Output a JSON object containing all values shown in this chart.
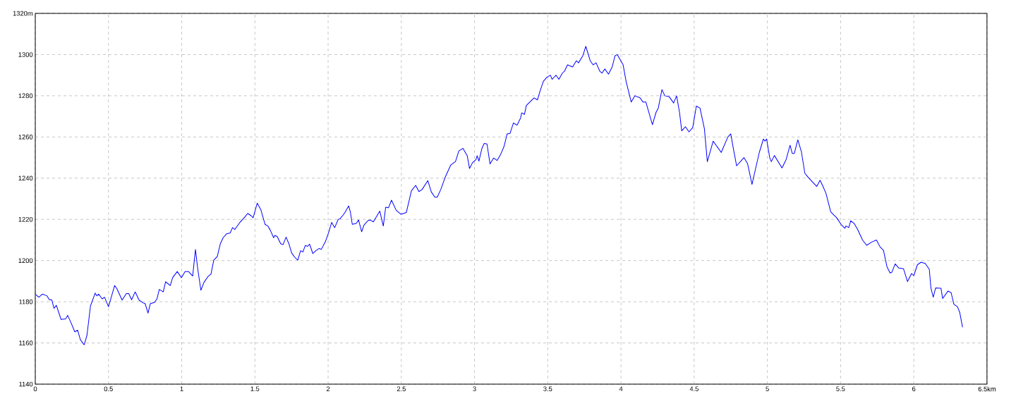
{
  "chart_data": {
    "type": "line",
    "x": [
      0,
      0.024,
      0.048,
      0.08,
      0.096,
      0.112,
      0.128,
      0.144,
      0.176,
      0.208,
      0.221,
      0.24,
      0.27,
      0.289,
      0.308,
      0.334,
      0.353,
      0.377,
      0.409,
      0.42,
      0.433,
      0.457,
      0.473,
      0.5,
      0.513,
      0.542,
      0.558,
      0.593,
      0.622,
      0.638,
      0.658,
      0.682,
      0.709,
      0.738,
      0.75,
      0.77,
      0.786,
      0.815,
      0.831,
      0.847,
      0.874,
      0.89,
      0.922,
      0.938,
      0.97,
      0.998,
      1.023,
      1.046,
      1.075,
      1.094,
      1.11,
      1.131,
      1.152,
      1.179,
      1.2,
      1.219,
      1.243,
      1.264,
      1.283,
      1.307,
      1.331,
      1.347,
      1.363,
      1.395,
      1.427,
      1.451,
      1.475,
      1.488,
      1.516,
      1.54,
      1.569,
      1.588,
      1.604,
      1.628,
      1.636,
      1.652,
      1.676,
      1.692,
      1.713,
      1.732,
      1.751,
      1.772,
      1.793,
      1.812,
      1.828,
      1.844,
      1.86,
      1.873,
      1.896,
      1.916,
      1.94,
      1.953,
      1.981,
      2.005,
      2.024,
      2.045,
      2.069,
      2.08,
      2.104,
      2.117,
      2.14,
      2.152,
      2.165,
      2.192,
      2.208,
      2.229,
      2.245,
      2.272,
      2.288,
      2.309,
      2.353,
      2.377,
      2.393,
      2.412,
      2.433,
      2.465,
      2.497,
      2.534,
      2.569,
      2.598,
      2.62,
      2.641,
      2.681,
      2.705,
      2.729,
      2.745,
      2.769,
      2.801,
      2.838,
      2.87,
      2.893,
      2.921,
      2.95,
      2.966,
      2.986,
      3.01,
      3.018,
      3.03,
      3.05,
      3.066,
      3.085,
      3.106,
      3.13,
      3.154,
      3.178,
      3.202,
      3.223,
      3.242,
      3.266,
      3.29,
      3.314,
      3.322,
      3.341,
      3.354,
      3.407,
      3.43,
      3.446,
      3.47,
      3.494,
      3.518,
      3.53,
      3.557,
      3.576,
      3.6,
      3.615,
      3.635,
      3.67,
      3.695,
      3.71,
      3.74,
      3.76,
      3.79,
      3.81,
      3.83,
      3.855,
      3.87,
      3.89,
      3.915,
      3.94,
      3.96,
      3.975,
      4.015,
      4.035,
      4.07,
      4.095,
      4.13,
      4.15,
      4.17,
      4.215,
      4.24,
      4.255,
      4.28,
      4.3,
      4.33,
      4.36,
      4.38,
      4.4,
      4.415,
      4.44,
      4.465,
      4.49,
      4.515,
      4.54,
      4.57,
      4.59,
      4.63,
      4.685,
      4.73,
      4.75,
      4.77,
      4.79,
      4.84,
      4.865,
      4.895,
      4.945,
      4.973,
      4.984,
      4.995,
      5.016,
      5.027,
      5.048,
      5.1,
      5.128,
      5.155,
      5.17,
      5.184,
      5.208,
      5.232,
      5.256,
      5.28,
      5.316,
      5.337,
      5.36,
      5.38,
      5.4,
      5.433,
      5.473,
      5.505,
      5.53,
      5.537,
      5.556,
      5.569,
      5.593,
      5.617,
      5.65,
      5.678,
      5.713,
      5.745,
      5.77,
      5.793,
      5.817,
      5.838,
      5.85,
      5.873,
      5.897,
      5.93,
      5.957,
      5.985,
      6.0,
      6.025,
      6.05,
      6.078,
      6.106,
      6.117,
      6.133,
      6.149,
      6.186,
      6.197,
      6.234,
      6.255,
      6.274,
      6.298,
      6.314,
      6.333
    ],
    "values": [
      1183.7,
      1182.2,
      1183.7,
      1182.9,
      1181,
      1181,
      1176.8,
      1178.3,
      1171.4,
      1171.7,
      1173.4,
      1170.5,
      1165.4,
      1166.2,
      1161.6,
      1159.1,
      1163.7,
      1178,
      1184.2,
      1182.9,
      1183.7,
      1181.4,
      1182.2,
      1177.6,
      1180.8,
      1187.9,
      1186.3,
      1180.8,
      1184,
      1184,
      1181,
      1184.8,
      1180.8,
      1179.4,
      1179.1,
      1174.5,
      1179.1,
      1179.7,
      1181.4,
      1186,
      1184.8,
      1189.7,
      1187.9,
      1191.7,
      1194.7,
      1191.7,
      1194.7,
      1194.7,
      1192.5,
      1205.4,
      1195.7,
      1185.6,
      1189.4,
      1192.2,
      1193.4,
      1200.2,
      1202,
      1208.2,
      1211.1,
      1213,
      1213.4,
      1216,
      1215.1,
      1218.3,
      1220.8,
      1222.9,
      1221.7,
      1220.8,
      1227.9,
      1224.8,
      1217.6,
      1216.8,
      1214.9,
      1211.1,
      1212.2,
      1211.7,
      1208.2,
      1207.7,
      1211.4,
      1208.2,
      1203.7,
      1201.6,
      1200.2,
      1204.8,
      1204.2,
      1207.3,
      1206.9,
      1208,
      1203.4,
      1204.8,
      1205.9,
      1205.4,
      1209.1,
      1213.9,
      1218.5,
      1216,
      1220,
      1220.2,
      1222.2,
      1223.6,
      1226.5,
      1223.6,
      1217.6,
      1218,
      1219.7,
      1214,
      1217.2,
      1219.4,
      1219.7,
      1218.8,
      1224,
      1216.8,
      1225.9,
      1225.6,
      1229.3,
      1224.4,
      1222.5,
      1223.3,
      1233.9,
      1236.5,
      1233.5,
      1234.4,
      1238.8,
      1233.3,
      1230.8,
      1230.8,
      1234.4,
      1240.7,
      1246.4,
      1248.1,
      1253.2,
      1254.5,
      1250.9,
      1244.7,
      1247.5,
      1249,
      1250.9,
      1248.3,
      1254.3,
      1256.9,
      1256.6,
      1246.9,
      1249.8,
      1248.6,
      1251.5,
      1255.5,
      1261.5,
      1261.7,
      1266.8,
      1265.7,
      1269.1,
      1271.7,
      1271,
      1275.3,
      1279,
      1278,
      1282,
      1287,
      1289,
      1290,
      1288,
      1290,
      1288,
      1291,
      1292,
      1295,
      1294,
      1297,
      1296,
      1299.5,
      1304,
      1297,
      1295,
      1296,
      1292,
      1291,
      1293,
      1290.5,
      1294,
      1299.5,
      1300,
      1295,
      1287,
      1277,
      1280,
      1279,
      1277,
      1277,
      1266,
      1272,
      1274,
      1283,
      1280,
      1279.5,
      1276.5,
      1280,
      1272,
      1263,
      1265,
      1262.5,
      1264.5,
      1275,
      1274,
      1264,
      1248,
      1258,
      1252.5,
      1260,
      1261.5,
      1253.5,
      1246,
      1250,
      1247,
      1237,
      1252.5,
      1259,
      1258,
      1259,
      1250,
      1248,
      1251,
      1245,
      1249,
      1256,
      1252,
      1252,
      1258.6,
      1253,
      1242.4,
      1240.3,
      1237.6,
      1236,
      1239,
      1236,
      1232.7,
      1223.6,
      1220.8,
      1217.4,
      1215.7,
      1216.8,
      1216,
      1219.3,
      1218,
      1215,
      1210,
      1207.4,
      1209,
      1210,
      1206.6,
      1205,
      1197,
      1194,
      1194.3,
      1198.4,
      1196.4,
      1196,
      1189.8,
      1193.7,
      1192.7,
      1198,
      1199.2,
      1198.6,
      1195.8,
      1186.7,
      1182.2,
      1186.7,
      1186.5,
      1181.6,
      1185.2,
      1184.4,
      1178.8,
      1177.6,
      1174.8,
      1167.6
    ],
    "color": "#0000ff",
    "xlim": [
      0,
      6.5
    ],
    "ylim": [
      1140,
      1320
    ],
    "xticks": [
      0,
      0.5,
      1,
      1.5,
      2,
      2.5,
      3,
      3.5,
      4,
      4.5,
      5,
      5.5,
      6,
      {
        "value": 6.5,
        "label": "6.5km"
      }
    ],
    "yticks": [
      1140,
      1160,
      1180,
      1200,
      1220,
      1240,
      1260,
      1280,
      1300,
      {
        "value": 1320,
        "label": "1320m"
      }
    ],
    "grid": true
  }
}
